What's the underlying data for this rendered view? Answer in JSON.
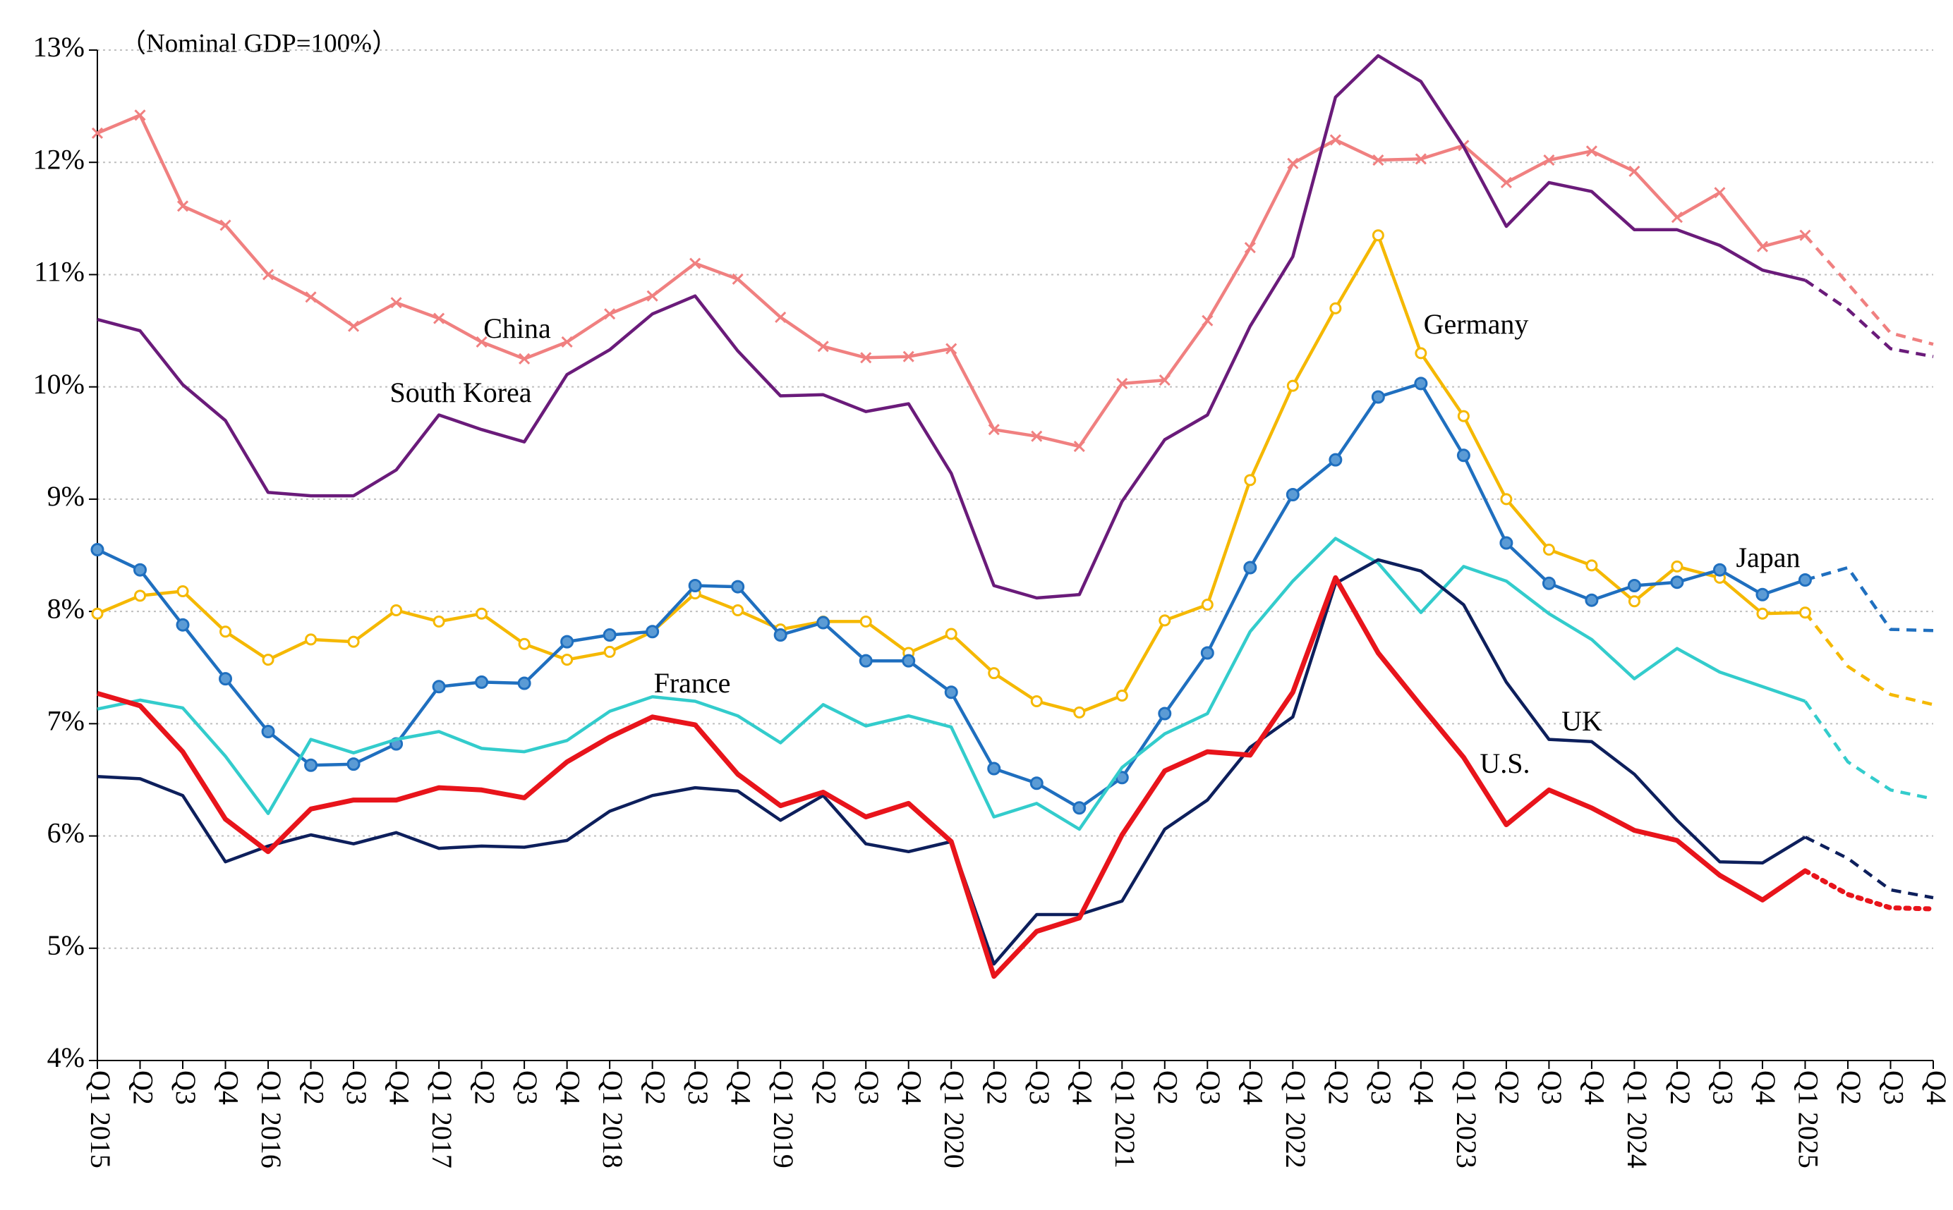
{
  "chart_data": {
    "type": "line",
    "annotation": "（Nominal GDP=100%）",
    "categories": [
      "Q1 2015",
      "Q2",
      "Q3",
      "Q4",
      "Q1 2016",
      "Q2",
      "Q3",
      "Q4",
      "Q1 2017",
      "Q2",
      "Q3",
      "Q4",
      "Q1 2018",
      "Q2",
      "Q3",
      "Q4",
      "Q1 2019",
      "Q2",
      "Q3",
      "Q4",
      "Q1 2020",
      "Q2",
      "Q3",
      "Q4",
      "Q1 2021",
      "Q2",
      "Q3",
      "Q4",
      "Q1 2022",
      "Q2",
      "Q3",
      "Q4",
      "Q1 2023",
      "Q2",
      "Q3",
      "Q4",
      "Q1 2024",
      "Q2",
      "Q3",
      "Q4",
      "Q1 2025",
      "Q2",
      "Q3",
      "Q4"
    ],
    "forecast_from": "Q1 2025",
    "ylim": [
      4,
      13
    ],
    "yticks": [
      {
        "value": 4,
        "label": "4%"
      },
      {
        "value": 5,
        "label": "5%"
      },
      {
        "value": 6,
        "label": "6%"
      },
      {
        "value": 7,
        "label": "7%"
      },
      {
        "value": 8,
        "label": "8%"
      },
      {
        "value": 9,
        "label": "9%"
      },
      {
        "value": 10,
        "label": "10%"
      },
      {
        "value": 11,
        "label": "11%"
      },
      {
        "value": 12,
        "label": "12%"
      },
      {
        "value": 13,
        "label": "13%"
      }
    ],
    "grid": true,
    "series": [
      {
        "name": "China",
        "color": "#f08080",
        "marker": "x",
        "forecast_dash": "dashed",
        "values": [
          12.26,
          12.42,
          11.61,
          11.44,
          11.0,
          10.8,
          10.54,
          10.75,
          10.61,
          10.4,
          10.25,
          10.4,
          10.65,
          10.81,
          11.1,
          10.96,
          10.62,
          10.36,
          10.26,
          10.27,
          10.34,
          9.62,
          9.56,
          9.47,
          10.03,
          10.06,
          10.59,
          11.24,
          11.99,
          12.2,
          12.02,
          12.03,
          12.15,
          11.82,
          12.02,
          12.1,
          11.92,
          11.51,
          11.73,
          11.25,
          11.35,
          10.92,
          10.48,
          10.38
        ]
      },
      {
        "name": "South Korea",
        "color": "#6a1b7a",
        "marker": "none",
        "forecast_dash": "dashed",
        "values": [
          10.6,
          10.5,
          10.02,
          9.7,
          9.06,
          9.03,
          9.03,
          9.26,
          9.75,
          9.62,
          9.51,
          10.11,
          10.33,
          10.65,
          10.81,
          10.32,
          9.92,
          9.93,
          9.78,
          9.85,
          9.23,
          8.23,
          8.12,
          8.15,
          8.98,
          9.53,
          9.75,
          10.54,
          11.16,
          12.58,
          12.95,
          12.72,
          12.14,
          11.43,
          11.82,
          11.74,
          11.4,
          11.4,
          11.26,
          11.04,
          10.95,
          10.69,
          10.34,
          10.27
        ]
      },
      {
        "name": "Germany",
        "color": "#f5b800",
        "marker": "circle-open",
        "forecast_dash": "dashed",
        "values": [
          7.98,
          8.14,
          8.18,
          7.82,
          7.57,
          7.75,
          7.73,
          8.01,
          7.91,
          7.98,
          7.71,
          7.57,
          7.64,
          7.82,
          8.16,
          8.01,
          7.84,
          7.91,
          7.91,
          7.63,
          7.8,
          7.45,
          7.2,
          7.1,
          7.25,
          7.92,
          8.06,
          9.17,
          10.01,
          10.7,
          11.35,
          10.3,
          9.74,
          9.0,
          8.55,
          8.41,
          8.09,
          8.4,
          8.3,
          7.98,
          7.99,
          7.51,
          7.26,
          7.17
        ]
      },
      {
        "name": "Japan",
        "color": "#1f6fbf",
        "marker": "circle",
        "forecast_dash": "dashed",
        "values": [
          8.55,
          8.37,
          7.88,
          7.4,
          6.93,
          6.63,
          6.64,
          6.82,
          7.33,
          7.37,
          7.36,
          7.73,
          7.79,
          7.82,
          8.23,
          8.22,
          7.79,
          7.9,
          7.56,
          7.56,
          7.28,
          6.6,
          6.47,
          6.25,
          6.52,
          7.09,
          7.63,
          8.39,
          9.04,
          9.35,
          9.91,
          10.03,
          9.39,
          8.61,
          8.25,
          8.1,
          8.23,
          8.26,
          8.37,
          8.15,
          8.28,
          8.39,
          7.84,
          7.83
        ]
      },
      {
        "name": "France",
        "color": "#33cccc",
        "marker": "none",
        "forecast_dash": "dashed",
        "values": [
          7.13,
          7.21,
          7.14,
          6.71,
          6.2,
          6.86,
          6.74,
          6.86,
          6.93,
          6.78,
          6.75,
          6.85,
          7.11,
          7.24,
          7.2,
          7.07,
          6.83,
          7.17,
          6.98,
          7.07,
          6.97,
          6.17,
          6.29,
          6.06,
          6.61,
          6.91,
          7.09,
          7.82,
          8.27,
          8.65,
          8.43,
          7.99,
          8.4,
          8.27,
          7.98,
          7.75,
          7.4,
          7.67,
          7.46,
          7.33,
          7.2,
          6.66,
          6.41,
          6.33
        ]
      },
      {
        "name": "UK",
        "color": "#0d1f5c",
        "marker": "none",
        "forecast_dash": "dashed",
        "values": [
          6.53,
          6.51,
          6.36,
          5.77,
          5.91,
          6.01,
          5.93,
          6.03,
          5.89,
          5.91,
          5.9,
          5.96,
          6.22,
          6.36,
          6.43,
          6.4,
          6.14,
          6.36,
          5.93,
          5.86,
          5.95,
          4.86,
          5.3,
          5.3,
          5.42,
          6.06,
          6.32,
          6.79,
          7.06,
          8.25,
          8.46,
          8.36,
          8.06,
          7.37,
          6.86,
          6.84,
          6.55,
          6.14,
          5.77,
          5.76,
          5.99,
          5.8,
          5.52,
          5.45
        ]
      },
      {
        "name": "U.S.",
        "color": "#e8141b",
        "marker": "none",
        "forecast_dash": "dotted",
        "values": [
          7.27,
          7.16,
          6.75,
          6.15,
          5.86,
          6.24,
          6.32,
          6.32,
          6.43,
          6.41,
          6.34,
          6.66,
          6.88,
          7.06,
          6.99,
          6.55,
          6.27,
          6.39,
          6.17,
          6.29,
          5.95,
          4.75,
          5.15,
          5.27,
          6.01,
          6.58,
          6.75,
          6.72,
          7.28,
          8.3,
          7.63,
          7.16,
          6.7,
          6.1,
          6.41,
          6.25,
          6.05,
          5.96,
          5.65,
          5.43,
          5.69,
          5.48,
          5.36,
          5.35
        ]
      }
    ]
  }
}
